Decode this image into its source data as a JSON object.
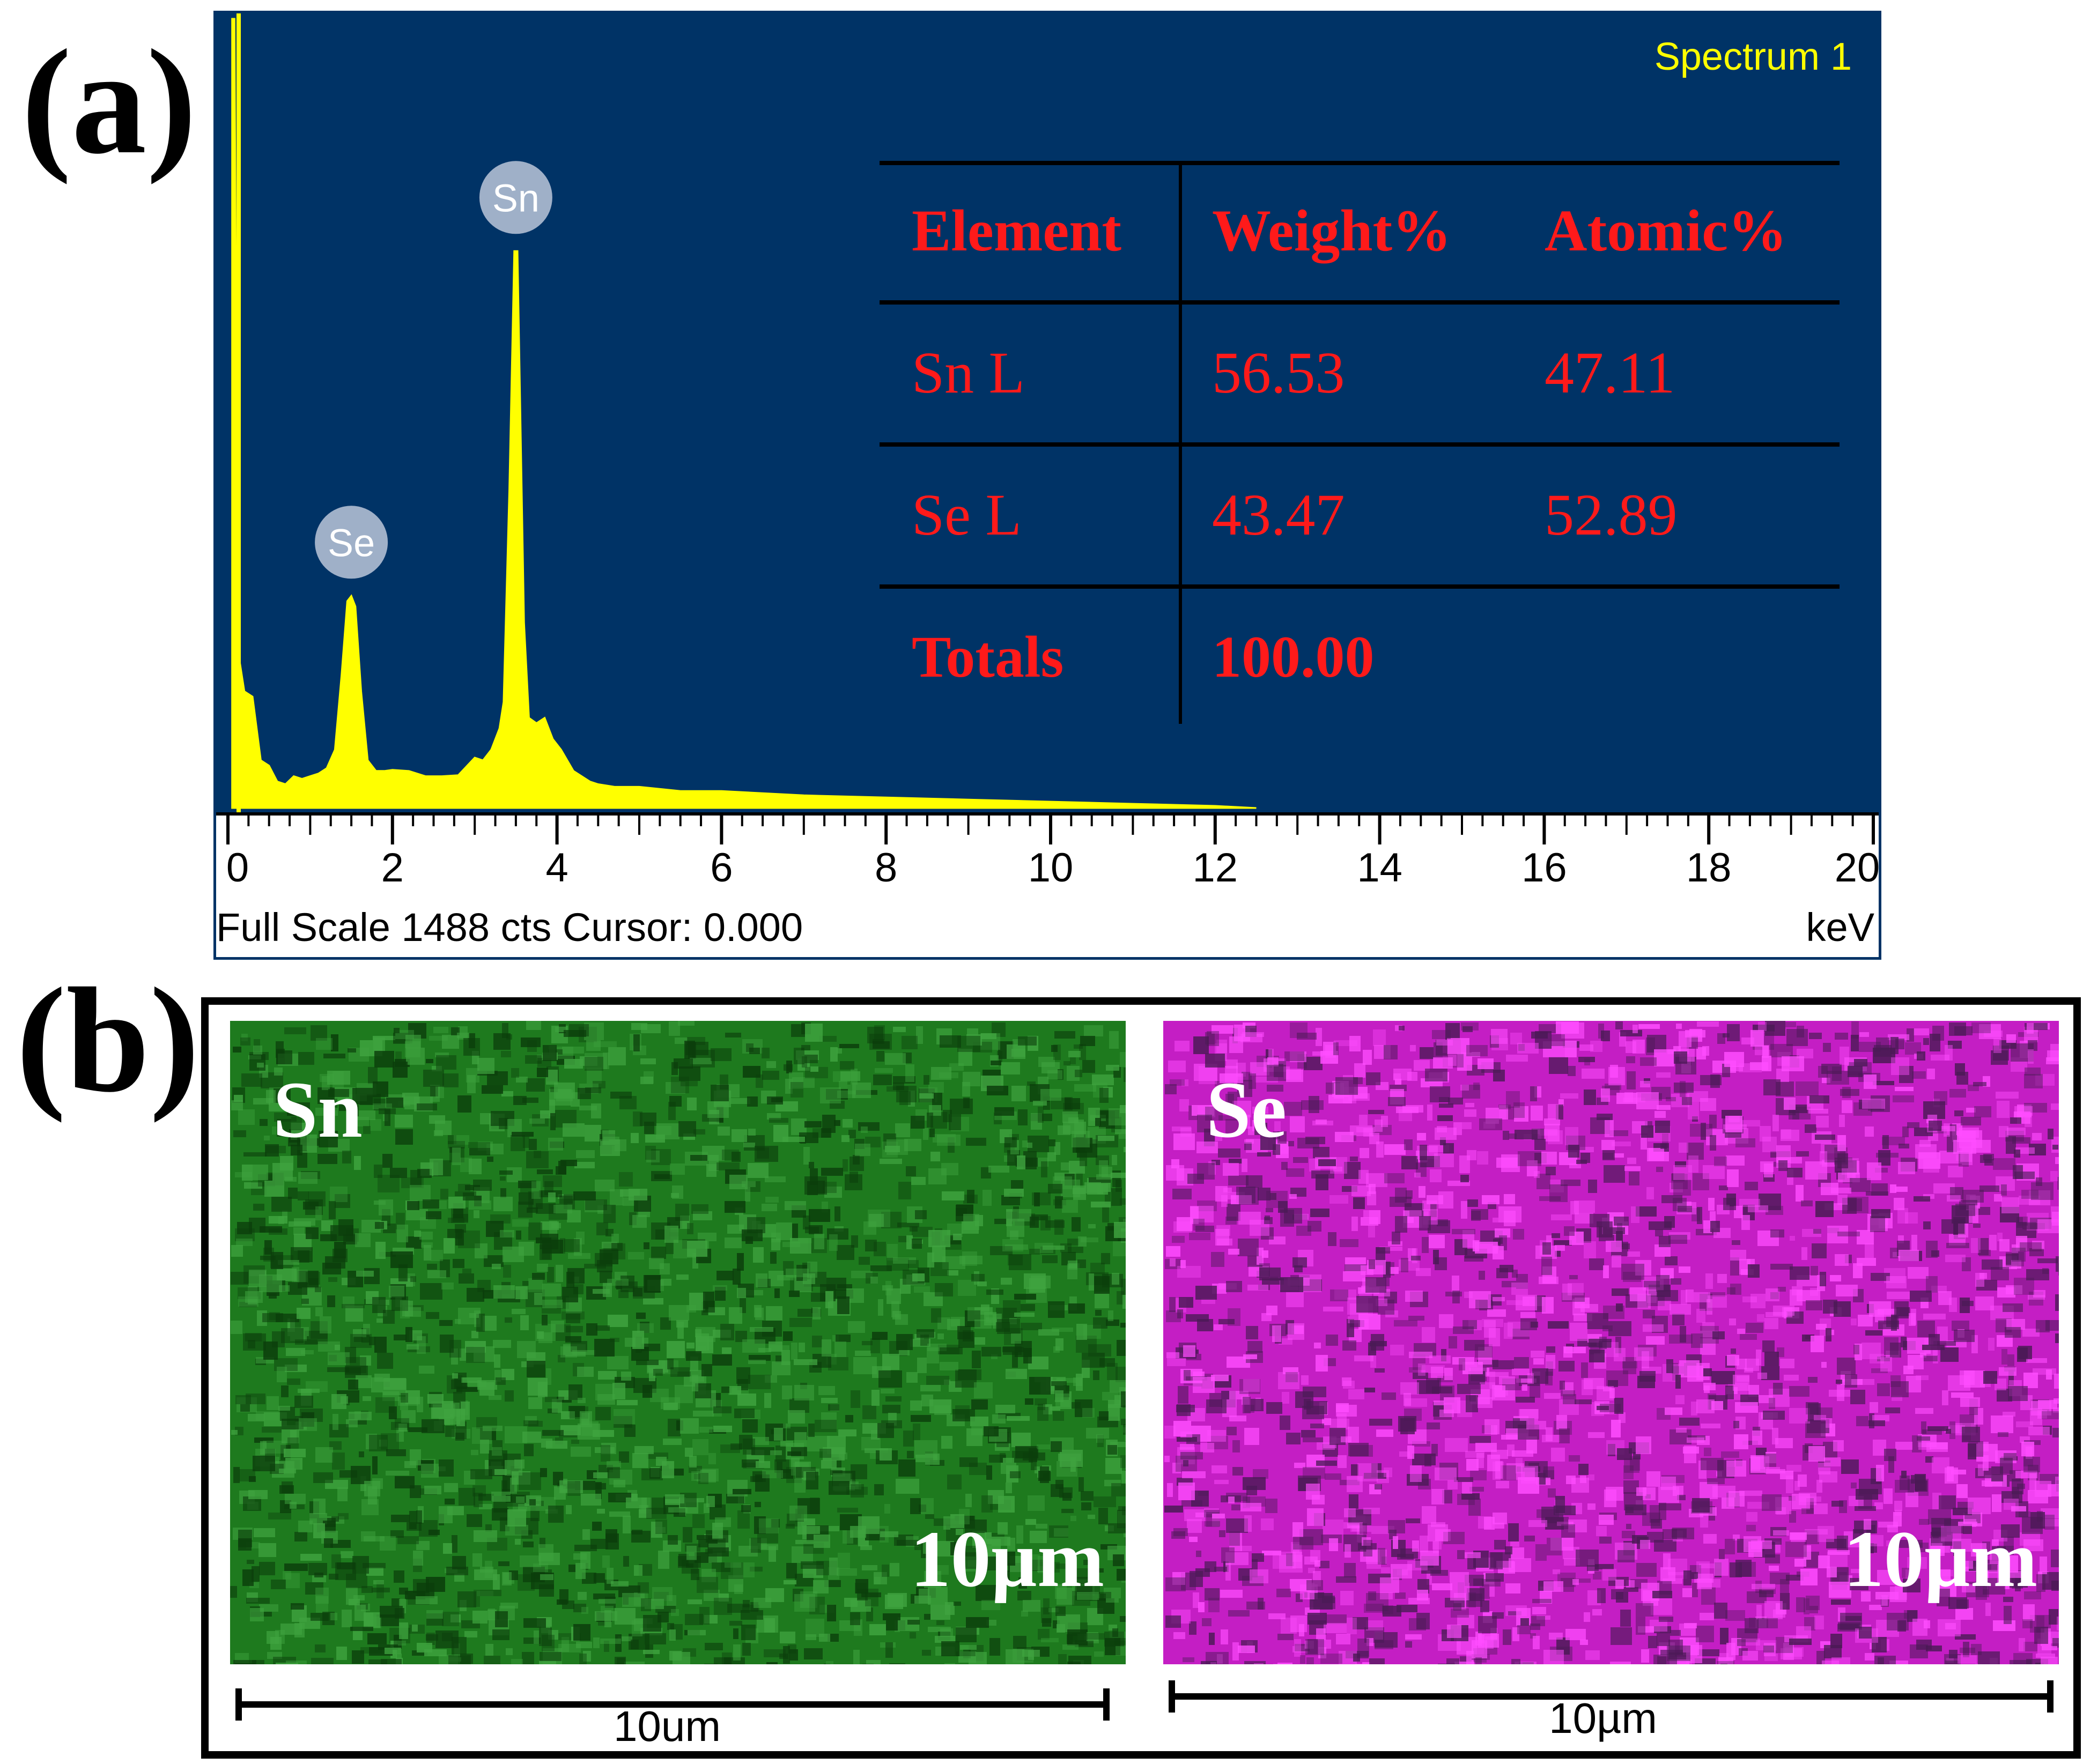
{
  "panels": {
    "a": "(a)",
    "b": "(b)"
  },
  "chart_data": {
    "type": "line",
    "title": "Spectrum 1",
    "xlabel": "keV",
    "xlim": [
      0,
      20
    ],
    "x_ticks": [
      "0",
      "2",
      "4",
      "6",
      "8",
      "10",
      "12",
      "14",
      "16",
      "18",
      "20"
    ],
    "full_scale_counts": 1488,
    "footer": "Full Scale 1488 cts Cursor: 0.000",
    "series": [
      {
        "name": "Spectrum 1",
        "color": "#ffff00",
        "x": [
          0.05,
          0.08,
          0.12,
          0.2,
          0.3,
          0.4,
          0.5,
          0.6,
          0.7,
          0.8,
          0.9,
          1.0,
          1.1,
          1.2,
          1.3,
          1.38,
          1.45,
          1.5,
          1.55,
          1.62,
          1.7,
          1.8,
          1.9,
          2.0,
          2.2,
          2.4,
          2.6,
          2.8,
          3.0,
          3.1,
          3.2,
          3.3,
          3.35,
          3.42,
          3.48,
          3.52,
          3.56,
          3.6,
          3.66,
          3.75,
          3.85,
          3.95,
          4.05,
          4.2,
          4.4,
          4.5,
          4.7,
          5.0,
          5.5,
          6.0,
          7.0,
          8.0,
          9.0,
          10.0,
          11.0,
          12.0,
          12.5
        ],
        "y": [
          1488,
          1488,
          300,
          220,
          210,
          90,
          80,
          50,
          45,
          60,
          55,
          60,
          65,
          75,
          110,
          250,
          390,
          400,
          380,
          220,
          90,
          70,
          70,
          72,
          70,
          60,
          60,
          62,
          95,
          90,
          110,
          150,
          200,
          600,
          1050,
          1050,
          700,
          350,
          170,
          160,
          170,
          130,
          110,
          70,
          50,
          45,
          40,
          40,
          32,
          32,
          24,
          20,
          16,
          12,
          8,
          4,
          0
        ]
      }
    ],
    "peak_labels": [
      {
        "element": "Se",
        "keV": 1.5,
        "counts": 400
      },
      {
        "element": "Sn",
        "keV": 3.5,
        "counts": 1050
      }
    ],
    "table": {
      "headers": [
        "Element",
        "Weight%",
        "Atomic%"
      ],
      "rows": [
        [
          "Sn L",
          "56.53",
          "47.11"
        ],
        [
          "Se L",
          "43.47",
          "52.89"
        ]
      ],
      "totals": [
        "Totals",
        "100.00"
      ]
    }
  },
  "maps": [
    {
      "element": "Sn",
      "scale_text": "10µm",
      "scalebar_label": "10um",
      "color": "#1e7a1e"
    },
    {
      "element": "Se",
      "scale_text": "10µm",
      "scalebar_label": "10µm",
      "color": "#c41ec4"
    }
  ]
}
